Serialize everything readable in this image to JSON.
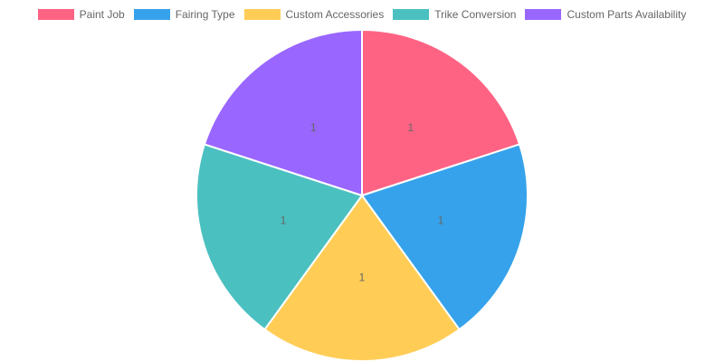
{
  "chart_data": {
    "type": "pie",
    "categories": [
      "Paint Job",
      "Fairing Type",
      "Custom Accessories",
      "Trike Conversion",
      "Custom Parts Availability"
    ],
    "values": [
      1,
      1,
      1,
      1,
      1
    ],
    "data_labels": [
      "1",
      "1",
      "1",
      "1",
      "1"
    ],
    "colors": [
      "#ff6384",
      "#36a2eb",
      "#ffcd56",
      "#4bc0c0",
      "#9966ff"
    ],
    "legend_position": "top",
    "slice_border_color": "#ffffff"
  }
}
